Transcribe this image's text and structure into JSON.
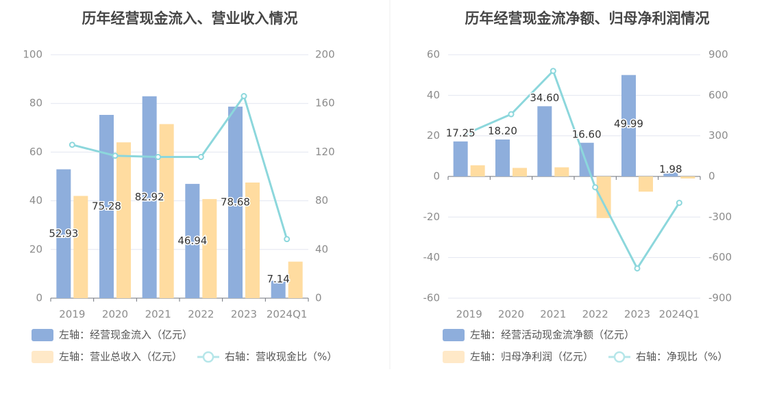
{
  "chart_data": [
    {
      "type": "bar+line",
      "title": "历年经营现金流入、营业收入情况",
      "categories": [
        "2019",
        "2020",
        "2021",
        "2022",
        "2023",
        "2024Q1"
      ],
      "left_axis": {
        "ylim": [
          0,
          100
        ],
        "ticks": [
          "0",
          "20",
          "40",
          "60",
          "80",
          "100"
        ]
      },
      "right_axis": {
        "ylim": [
          0,
          200
        ],
        "ticks": [
          "0",
          "40",
          "80",
          "120",
          "160",
          "200"
        ]
      },
      "grid": true,
      "legend_position": "bottom-left",
      "series": [
        {
          "name": "左轴：经营现金流入（亿元）",
          "type": "bar",
          "axis": "left",
          "color": "#8eaedc",
          "values": [
            52.93,
            75.28,
            82.92,
            46.94,
            78.68,
            7.14
          ],
          "labels": [
            "52.93",
            "75.28",
            "82.92",
            "46.94",
            "78.68",
            "7.14"
          ]
        },
        {
          "name": "左轴：营业总收入（亿元）",
          "type": "bar",
          "axis": "left",
          "color": "#ffdca0",
          "values": [
            42,
            64,
            71.5,
            40.7,
            47.5,
            15
          ]
        },
        {
          "name": "右轴：营收现金比（%）",
          "type": "line",
          "axis": "right",
          "color": "#8cd7dc",
          "values": [
            126,
            117,
            116,
            116,
            166,
            48.5
          ]
        }
      ]
    },
    {
      "type": "bar+line",
      "title": "历年经营现金流净额、归母净利润情况",
      "categories": [
        "2019",
        "2020",
        "2021",
        "2022",
        "2023",
        "2024Q1"
      ],
      "left_axis": {
        "ylim": [
          -60,
          60
        ],
        "ticks": [
          "-60",
          "-40",
          "-20",
          "0",
          "20",
          "40",
          "60"
        ]
      },
      "right_axis": {
        "ylim": [
          -900,
          900
        ],
        "ticks": [
          "-900",
          "-600",
          "-300",
          "0",
          "300",
          "600",
          "900"
        ]
      },
      "grid": true,
      "legend_position": "bottom-left",
      "series": [
        {
          "name": "左轴：经营活动现金流净额（亿元）",
          "type": "bar",
          "axis": "left",
          "color": "#8eaedc",
          "values": [
            17.25,
            18.2,
            34.6,
            16.6,
            49.99,
            1.98
          ],
          "labels": [
            "17.25",
            "18.20",
            "34.60",
            "16.60",
            "49.99",
            "1.98"
          ]
        },
        {
          "name": "左轴：归母净利润（亿元）",
          "type": "bar",
          "axis": "left",
          "color": "#ffdca0",
          "values": [
            5.5,
            4.2,
            4.5,
            -20.5,
            -7.5,
            -1
          ]
        },
        {
          "name": "右轴：净现比（%）",
          "type": "line",
          "axis": "right",
          "color": "#8cd7dc",
          "values": [
            325,
            460,
            780,
            -80,
            -680,
            -195
          ]
        }
      ]
    }
  ]
}
